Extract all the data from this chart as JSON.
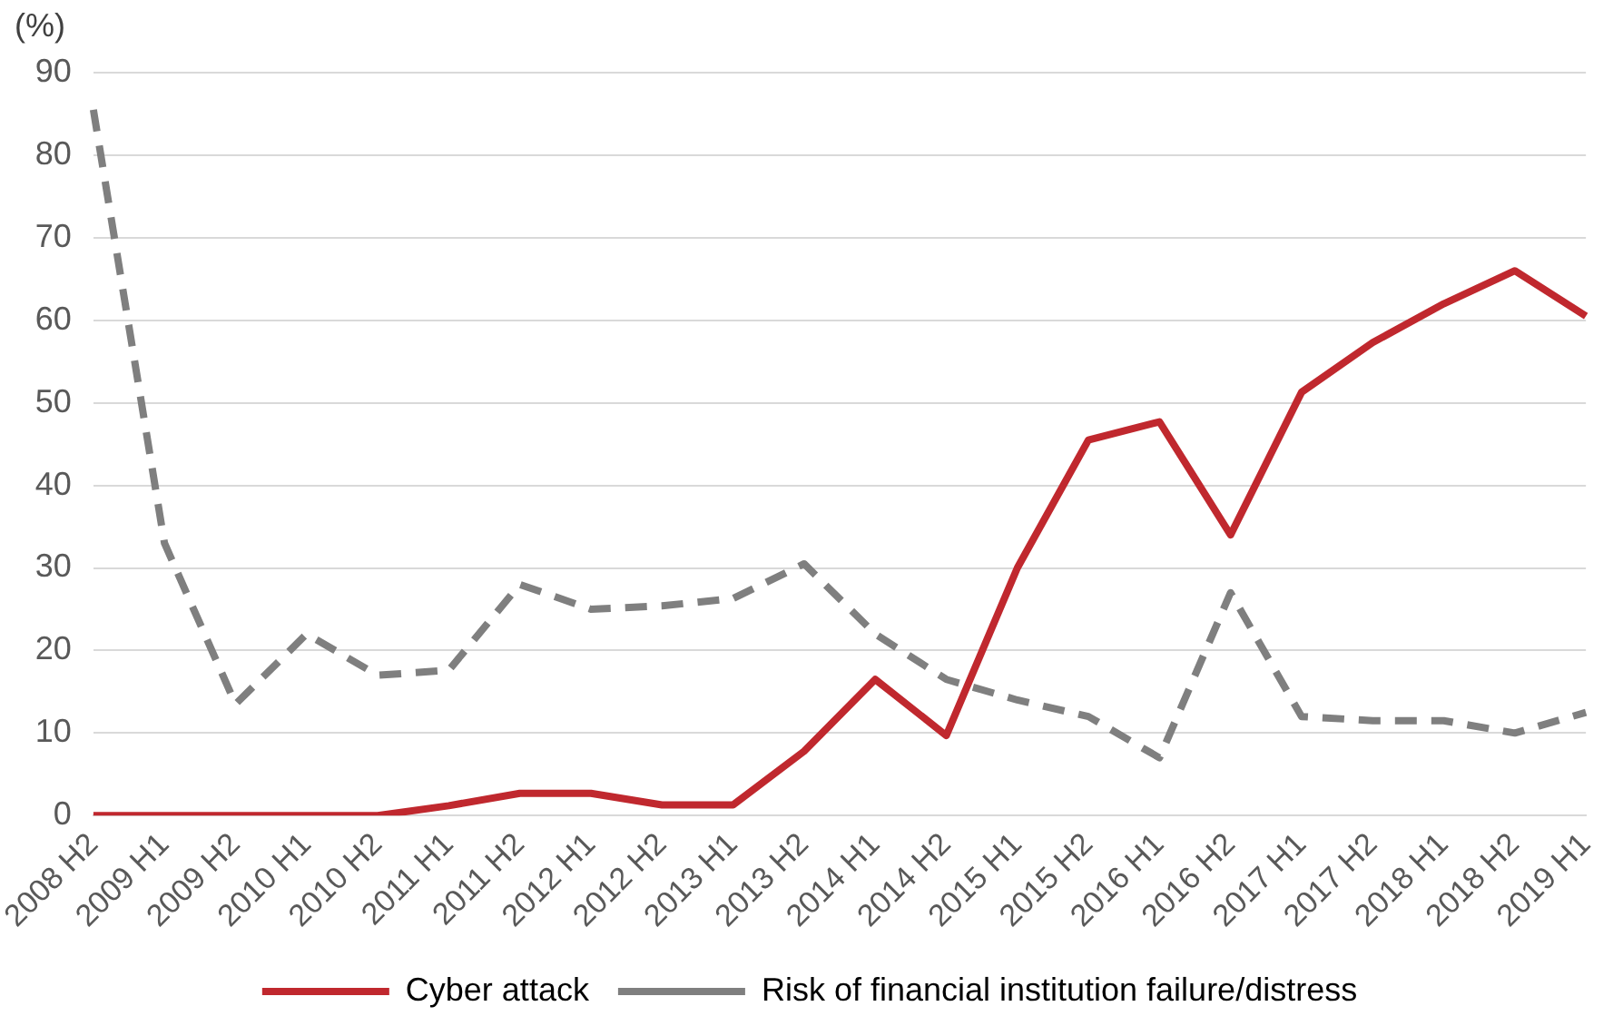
{
  "chart_data": {
    "type": "line",
    "ylabel": "(%)",
    "categories": [
      "2008 H2",
      "2009 H1",
      "2009 H2",
      "2010 H1",
      "2010 H2",
      "2011 H1",
      "2011 H2",
      "2012 H1",
      "2012 H2",
      "2013 H1",
      "2013 H2",
      "2014 H1",
      "2014 H2",
      "2015 H1",
      "2015 H2",
      "2016 H1",
      "2016 H2",
      "2017 H1",
      "2017 H2",
      "2018 H1",
      "2018 H2",
      "2019 H1"
    ],
    "series": [
      {
        "name": "Cyber attack",
        "color": "#c0282e",
        "line_style": "solid",
        "values": [
          0,
          0,
          0,
          0,
          0,
          1.2,
          2.7,
          2.7,
          1.3,
          1.3,
          7.8,
          16.5,
          9.7,
          30,
          45.5,
          47.7,
          34,
          51.3,
          57.3,
          62,
          66,
          60.5
        ]
      },
      {
        "name": "Risk of financial institution failure/distress",
        "color": "#7f7f7f",
        "line_style": "dashed",
        "values": [
          85.5,
          33,
          13.5,
          22,
          17,
          17.6,
          28,
          25,
          25.4,
          26.3,
          30.5,
          22,
          16.5,
          14,
          12,
          7,
          27,
          12,
          11.5,
          11.5,
          10,
          12.5
        ]
      }
    ],
    "ylim": [
      0,
      90
    ],
    "yticks": [
      0,
      10,
      20,
      30,
      40,
      50,
      60,
      70,
      80,
      90
    ],
    "grid": "y",
    "legend": "bottom",
    "marker": "none"
  }
}
